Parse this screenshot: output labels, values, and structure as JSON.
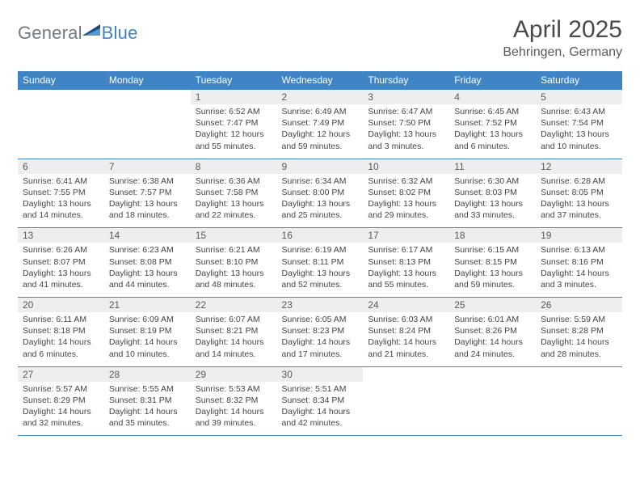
{
  "brand": {
    "general": "General",
    "blue": "Blue"
  },
  "title": "April 2025",
  "location": "Behringen, Germany",
  "colors": {
    "header_bg": "#3f85c6",
    "header_text": "#ffffff",
    "daynum_bg": "#eceeef",
    "border": "#3f85c6",
    "logo_gray": "#6f7b84",
    "logo_blue": "#3f85c6",
    "shape_dark": "#1c4d7a",
    "shape_light": "#4e9bd8"
  },
  "day_headers": [
    "Sunday",
    "Monday",
    "Tuesday",
    "Wednesday",
    "Thursday",
    "Friday",
    "Saturday"
  ],
  "weeks": [
    [
      null,
      null,
      {
        "n": "1",
        "sr": "6:52 AM",
        "ss": "7:47 PM",
        "dl": "12 hours and 55 minutes."
      },
      {
        "n": "2",
        "sr": "6:49 AM",
        "ss": "7:49 PM",
        "dl": "12 hours and 59 minutes."
      },
      {
        "n": "3",
        "sr": "6:47 AM",
        "ss": "7:50 PM",
        "dl": "13 hours and 3 minutes."
      },
      {
        "n": "4",
        "sr": "6:45 AM",
        "ss": "7:52 PM",
        "dl": "13 hours and 6 minutes."
      },
      {
        "n": "5",
        "sr": "6:43 AM",
        "ss": "7:54 PM",
        "dl": "13 hours and 10 minutes."
      }
    ],
    [
      {
        "n": "6",
        "sr": "6:41 AM",
        "ss": "7:55 PM",
        "dl": "13 hours and 14 minutes."
      },
      {
        "n": "7",
        "sr": "6:38 AM",
        "ss": "7:57 PM",
        "dl": "13 hours and 18 minutes."
      },
      {
        "n": "8",
        "sr": "6:36 AM",
        "ss": "7:58 PM",
        "dl": "13 hours and 22 minutes."
      },
      {
        "n": "9",
        "sr": "6:34 AM",
        "ss": "8:00 PM",
        "dl": "13 hours and 25 minutes."
      },
      {
        "n": "10",
        "sr": "6:32 AM",
        "ss": "8:02 PM",
        "dl": "13 hours and 29 minutes."
      },
      {
        "n": "11",
        "sr": "6:30 AM",
        "ss": "8:03 PM",
        "dl": "13 hours and 33 minutes."
      },
      {
        "n": "12",
        "sr": "6:28 AM",
        "ss": "8:05 PM",
        "dl": "13 hours and 37 minutes."
      }
    ],
    [
      {
        "n": "13",
        "sr": "6:26 AM",
        "ss": "8:07 PM",
        "dl": "13 hours and 41 minutes."
      },
      {
        "n": "14",
        "sr": "6:23 AM",
        "ss": "8:08 PM",
        "dl": "13 hours and 44 minutes."
      },
      {
        "n": "15",
        "sr": "6:21 AM",
        "ss": "8:10 PM",
        "dl": "13 hours and 48 minutes."
      },
      {
        "n": "16",
        "sr": "6:19 AM",
        "ss": "8:11 PM",
        "dl": "13 hours and 52 minutes."
      },
      {
        "n": "17",
        "sr": "6:17 AM",
        "ss": "8:13 PM",
        "dl": "13 hours and 55 minutes."
      },
      {
        "n": "18",
        "sr": "6:15 AM",
        "ss": "8:15 PM",
        "dl": "13 hours and 59 minutes."
      },
      {
        "n": "19",
        "sr": "6:13 AM",
        "ss": "8:16 PM",
        "dl": "14 hours and 3 minutes."
      }
    ],
    [
      {
        "n": "20",
        "sr": "6:11 AM",
        "ss": "8:18 PM",
        "dl": "14 hours and 6 minutes."
      },
      {
        "n": "21",
        "sr": "6:09 AM",
        "ss": "8:19 PM",
        "dl": "14 hours and 10 minutes."
      },
      {
        "n": "22",
        "sr": "6:07 AM",
        "ss": "8:21 PM",
        "dl": "14 hours and 14 minutes."
      },
      {
        "n": "23",
        "sr": "6:05 AM",
        "ss": "8:23 PM",
        "dl": "14 hours and 17 minutes."
      },
      {
        "n": "24",
        "sr": "6:03 AM",
        "ss": "8:24 PM",
        "dl": "14 hours and 21 minutes."
      },
      {
        "n": "25",
        "sr": "6:01 AM",
        "ss": "8:26 PM",
        "dl": "14 hours and 24 minutes."
      },
      {
        "n": "26",
        "sr": "5:59 AM",
        "ss": "8:28 PM",
        "dl": "14 hours and 28 minutes."
      }
    ],
    [
      {
        "n": "27",
        "sr": "5:57 AM",
        "ss": "8:29 PM",
        "dl": "14 hours and 32 minutes."
      },
      {
        "n": "28",
        "sr": "5:55 AM",
        "ss": "8:31 PM",
        "dl": "14 hours and 35 minutes."
      },
      {
        "n": "29",
        "sr": "5:53 AM",
        "ss": "8:32 PM",
        "dl": "14 hours and 39 minutes."
      },
      {
        "n": "30",
        "sr": "5:51 AM",
        "ss": "8:34 PM",
        "dl": "14 hours and 42 minutes."
      },
      null,
      null,
      null
    ]
  ],
  "labels": {
    "sunrise": "Sunrise:",
    "sunset": "Sunset:",
    "daylight": "Daylight:"
  }
}
